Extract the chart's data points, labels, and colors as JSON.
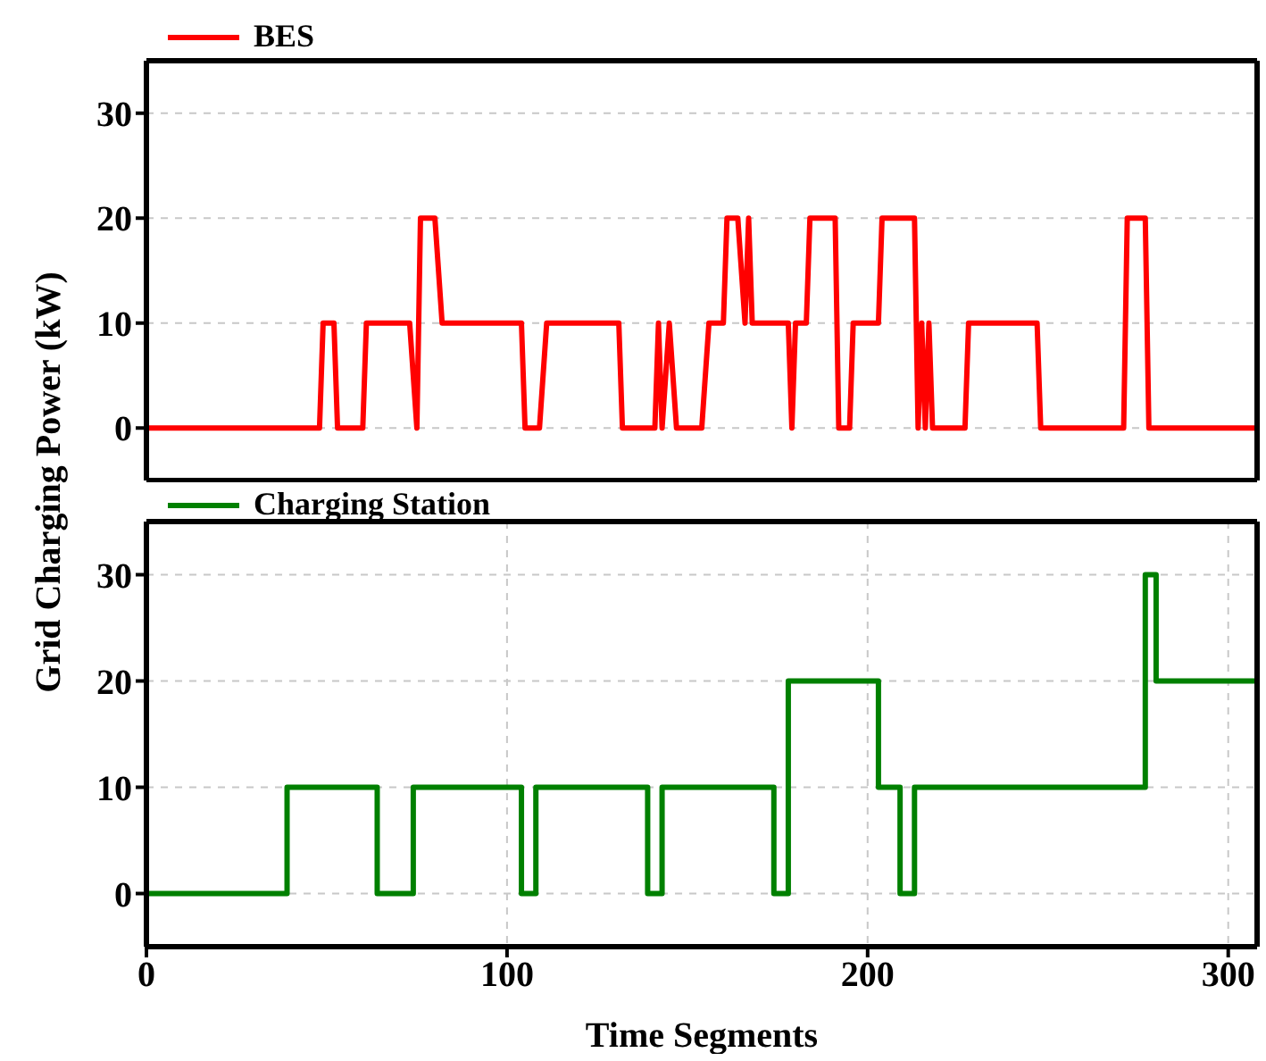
{
  "chart_data": [
    {
      "type": "line",
      "ylabel": "Grid Charging Power (kW)",
      "xlim": [
        0,
        308
      ],
      "xticks": [
        0,
        100,
        200,
        300
      ],
      "ylim": [
        -5,
        35
      ],
      "yticks": [
        0,
        10,
        20,
        30
      ],
      "grid": true,
      "legend": "top left",
      "tick_labels": "y",
      "line_style": "solid",
      "marker": "none",
      "series": [
        {
          "name": "BES",
          "color": "#ff0000",
          "x": [
            0,
            48,
            49,
            52,
            53,
            60,
            61,
            73,
            75,
            76,
            80,
            82,
            104,
            105,
            109,
            111,
            131,
            132,
            141,
            142,
            143,
            145,
            147,
            154,
            156,
            160,
            161,
            164,
            166,
            167,
            168,
            178,
            179,
            180,
            183,
            184,
            191,
            192,
            195,
            196,
            203,
            204,
            213,
            214,
            215,
            216,
            217,
            218,
            227,
            228,
            247,
            248,
            271,
            272,
            277,
            278,
            308
          ],
          "values": [
            0,
            0,
            10,
            10,
            0,
            0,
            10,
            10,
            0,
            20,
            20,
            10,
            10,
            0,
            0,
            10,
            10,
            0,
            0,
            10,
            0,
            10,
            0,
            0,
            10,
            10,
            20,
            20,
            10,
            20,
            10,
            10,
            0,
            10,
            10,
            20,
            20,
            0,
            0,
            10,
            10,
            20,
            20,
            0,
            10,
            0,
            10,
            0,
            0,
            10,
            10,
            0,
            0,
            20,
            20,
            0,
            0
          ]
        }
      ]
    },
    {
      "type": "step",
      "xlabel": "Time Segments",
      "xlim": [
        0,
        308
      ],
      "xticks": [
        0,
        100,
        200,
        300
      ],
      "ylim": [
        -5,
        35
      ],
      "yticks": [
        0,
        10,
        20,
        30
      ],
      "grid": true,
      "legend": "top left",
      "line_style": "solid",
      "marker": "none",
      "series": [
        {
          "name": "Charging Station",
          "color": "#008000",
          "x": [
            0,
            39,
            64,
            74,
            104,
            108,
            139,
            143,
            174,
            178,
            203,
            209,
            213,
            277,
            280,
            308
          ],
          "values": [
            0,
            10,
            0,
            10,
            0,
            10,
            0,
            10,
            0,
            20,
            10,
            0,
            10,
            30,
            20,
            0
          ]
        }
      ]
    }
  ]
}
